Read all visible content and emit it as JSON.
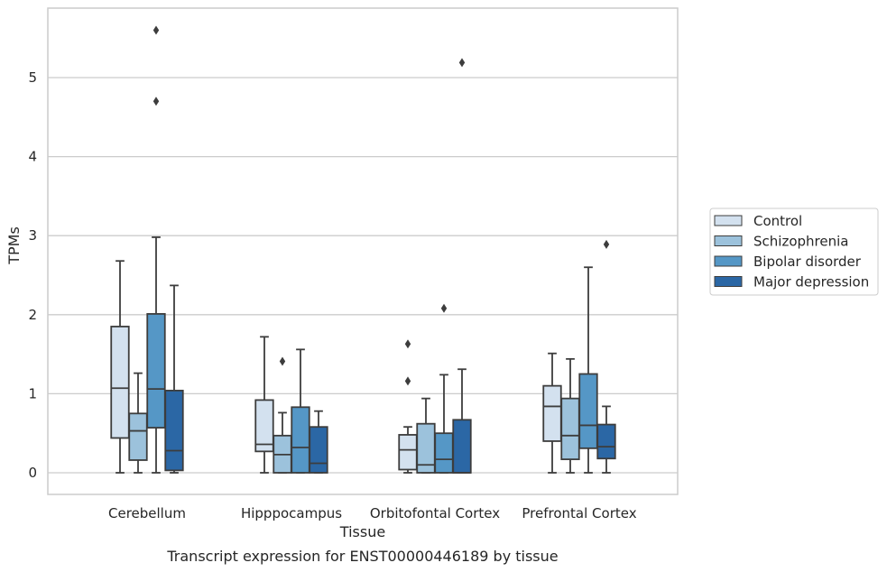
{
  "chart_data": {
    "type": "box",
    "caption": "Transcript expression for ENST00000446189 by tissue",
    "xlabel": "Tissue",
    "ylabel": "TPMs",
    "ylim": [
      -0.27,
      5.9
    ],
    "yticks": [
      0,
      1,
      2,
      3,
      4,
      5
    ],
    "grid": "horizontal",
    "legend_position": "right",
    "categories": [
      "Cerebellum",
      "Hipppocampus",
      "Orbitofontal Cortex",
      "Prefrontal Cortex"
    ],
    "series": [
      {
        "name": "Control",
        "color": "#d3e1ef",
        "boxes": [
          {
            "whislo": 0.0,
            "q1": 0.44,
            "med": 1.07,
            "q3": 1.85,
            "whishi": 2.68,
            "fliers": []
          },
          {
            "whislo": 0.0,
            "q1": 0.27,
            "med": 0.36,
            "q3": 0.92,
            "whishi": 1.72,
            "fliers": []
          },
          {
            "whislo": 0.0,
            "q1": 0.04,
            "med": 0.29,
            "q3": 0.48,
            "whishi": 0.58,
            "fliers": [
              1.63,
              1.16
            ]
          },
          {
            "whislo": 0.0,
            "q1": 0.4,
            "med": 0.84,
            "q3": 1.1,
            "whishi": 1.51,
            "fliers": []
          }
        ]
      },
      {
        "name": "Schizophrenia",
        "color": "#9cc2dc",
        "boxes": [
          {
            "whislo": 0.0,
            "q1": 0.16,
            "med": 0.53,
            "q3": 0.75,
            "whishi": 1.26,
            "fliers": []
          },
          {
            "whislo": 0.0,
            "q1": 0.0,
            "med": 0.23,
            "q3": 0.47,
            "whishi": 0.76,
            "fliers": [
              1.41
            ]
          },
          {
            "whislo": 0.0,
            "q1": 0.0,
            "med": 0.1,
            "q3": 0.62,
            "whishi": 0.94,
            "fliers": []
          },
          {
            "whislo": 0.0,
            "q1": 0.17,
            "med": 0.47,
            "q3": 0.94,
            "whishi": 1.44,
            "fliers": []
          }
        ]
      },
      {
        "name": "Bipolar disorder",
        "color": "#5597c6",
        "boxes": [
          {
            "whislo": 0.0,
            "q1": 0.57,
            "med": 1.06,
            "q3": 2.01,
            "whishi": 2.98,
            "fliers": [
              5.6,
              4.7
            ]
          },
          {
            "whislo": 0.0,
            "q1": 0.0,
            "med": 0.32,
            "q3": 0.83,
            "whishi": 1.56,
            "fliers": []
          },
          {
            "whislo": 0.0,
            "q1": 0.0,
            "med": 0.17,
            "q3": 0.5,
            "whishi": 1.24,
            "fliers": [
              2.08
            ]
          },
          {
            "whislo": 0.0,
            "q1": 0.31,
            "med": 0.6,
            "q3": 1.25,
            "whishi": 2.6,
            "fliers": []
          }
        ]
      },
      {
        "name": "Major depression",
        "color": "#2b67a5",
        "boxes": [
          {
            "whislo": 0.0,
            "q1": 0.03,
            "med": 0.28,
            "q3": 1.04,
            "whishi": 2.37,
            "fliers": []
          },
          {
            "whislo": 0.0,
            "q1": 0.0,
            "med": 0.12,
            "q3": 0.58,
            "whishi": 0.78,
            "fliers": []
          },
          {
            "whislo": 0.0,
            "q1": 0.0,
            "med": 0.0,
            "q3": 0.67,
            "whishi": 1.31,
            "fliers": [
              5.19
            ]
          },
          {
            "whislo": 0.0,
            "q1": 0.18,
            "med": 0.33,
            "q3": 0.61,
            "whishi": 0.84,
            "fliers": [
              2.89
            ]
          }
        ]
      }
    ]
  }
}
